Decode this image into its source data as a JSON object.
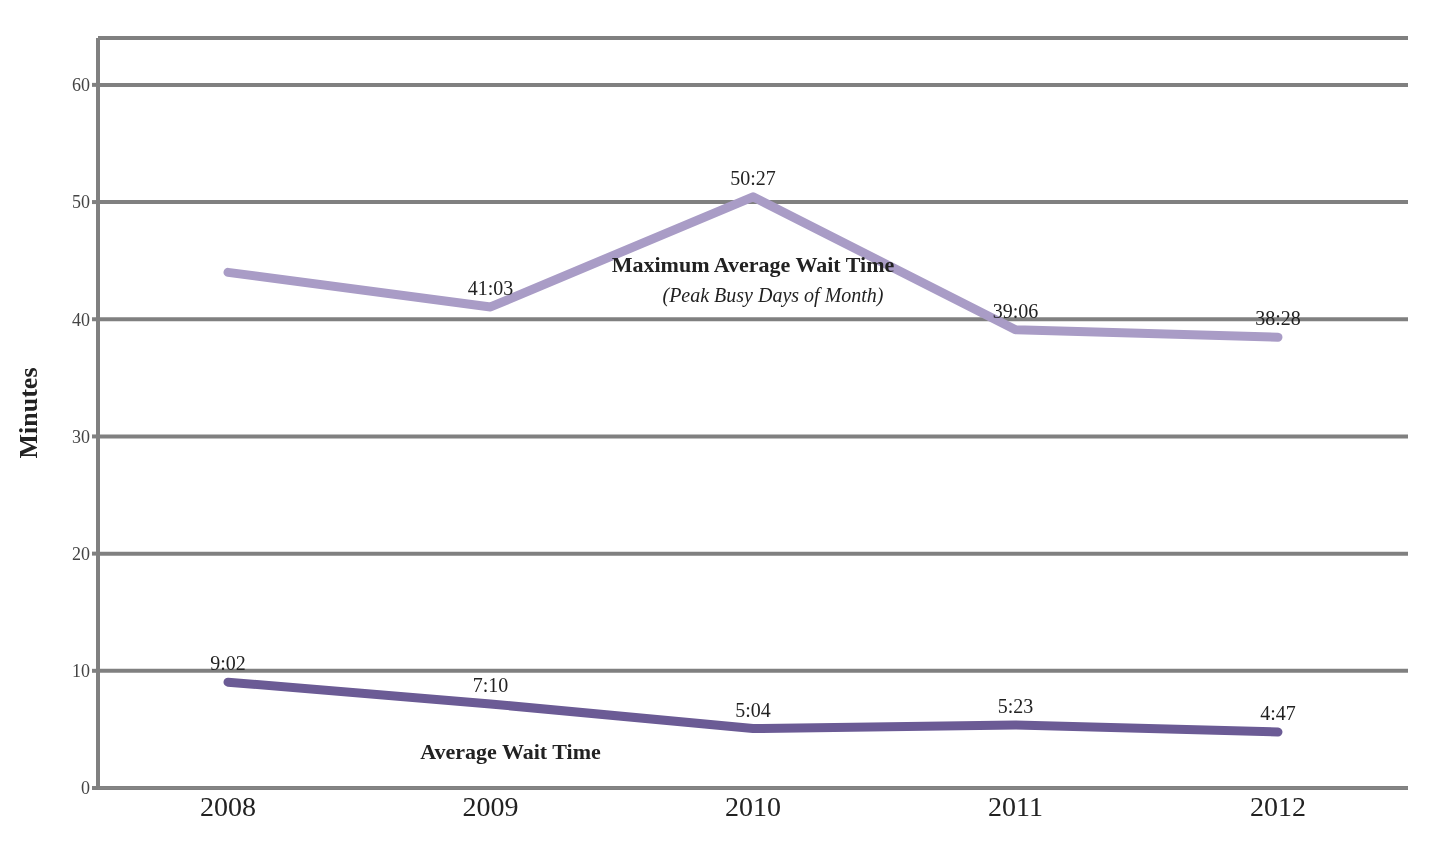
{
  "chart_data": {
    "type": "line",
    "ylabel": "Minutes",
    "categories": [
      "2008",
      "2009",
      "2010",
      "2011",
      "2012"
    ],
    "series": [
      {
        "name": "Maximum Average Wait Time",
        "color": "#a99cc6",
        "values": [
          44,
          41.05,
          50.45,
          39.1,
          38.47
        ],
        "value_labels": [
          null,
          "41:03",
          "50:27",
          "39:06",
          "38:28"
        ]
      },
      {
        "name": "Average Wait Time",
        "color": "#6b5b95",
        "values": [
          9.03,
          7.17,
          5.07,
          5.38,
          4.78
        ],
        "value_labels": [
          "9:02",
          "7:10",
          "5:04",
          "5:23",
          "4:47"
        ]
      }
    ],
    "ylim": [
      0,
      64
    ],
    "yticks": [
      0,
      10,
      20,
      30,
      40,
      50,
      60
    ],
    "grid": "y",
    "legend": false,
    "marker": "none",
    "line_style": "solid",
    "annotations": [
      "(Peak Busy Days of Month)"
    ]
  }
}
